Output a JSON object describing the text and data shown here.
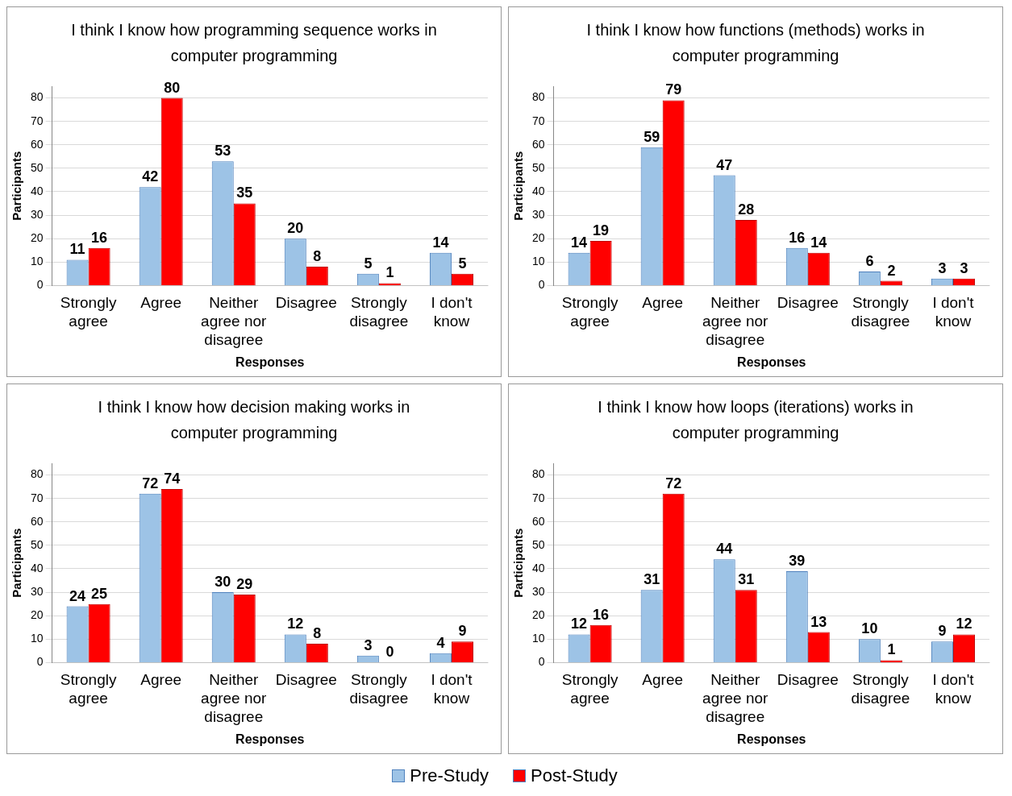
{
  "chart_data": [
    {
      "type": "bar",
      "title": "I think I know how programming sequence works in computer programming",
      "xlabel": "Responses",
      "ylabel": "Participants",
      "categories": [
        "Strongly agree",
        "Agree",
        "Neither agree nor disagree",
        "Disagree",
        "Strongly disagree",
        "I don't know"
      ],
      "series": [
        {
          "name": "Pre-Study",
          "color": "#9dc3e6",
          "values": [
            11,
            42,
            53,
            20,
            5,
            14
          ]
        },
        {
          "name": "Post-Study",
          "color": "#ff0000",
          "values": [
            16,
            80,
            35,
            8,
            1,
            5
          ]
        }
      ],
      "ylim": [
        0,
        85
      ],
      "yticks": [
        0,
        10,
        20,
        30,
        40,
        50,
        60,
        70,
        80
      ],
      "grid": "y",
      "data_labels": true,
      "legend": "bottom"
    },
    {
      "type": "bar",
      "title": "I think I know how functions (methods) works in computer programming",
      "xlabel": "Responses",
      "ylabel": "Participants",
      "categories": [
        "Strongly agree",
        "Agree",
        "Neither agree nor disagree",
        "Disagree",
        "Strongly disagree",
        "I don't know"
      ],
      "series": [
        {
          "name": "Pre-Study",
          "color": "#9dc3e6",
          "values": [
            14,
            59,
            47,
            16,
            6,
            3
          ]
        },
        {
          "name": "Post-Study",
          "color": "#ff0000",
          "values": [
            19,
            79,
            28,
            14,
            2,
            3
          ]
        }
      ],
      "ylim": [
        0,
        85
      ],
      "yticks": [
        0,
        10,
        20,
        30,
        40,
        50,
        60,
        70,
        80
      ],
      "grid": "y",
      "data_labels": true,
      "legend": "bottom"
    },
    {
      "type": "bar",
      "title": "I think I know how decision making works in computer programming",
      "xlabel": "Responses",
      "ylabel": "Participants",
      "categories": [
        "Strongly agree",
        "Agree",
        "Neither agree nor disagree",
        "Disagree",
        "Strongly disagree",
        "I don't know"
      ],
      "series": [
        {
          "name": "Pre-Study",
          "color": "#9dc3e6",
          "values": [
            24,
            72,
            30,
            12,
            3,
            4
          ]
        },
        {
          "name": "Post-Study",
          "color": "#ff0000",
          "values": [
            25,
            74,
            29,
            8,
            0,
            9
          ]
        }
      ],
      "ylim": [
        0,
        85
      ],
      "yticks": [
        0,
        10,
        20,
        30,
        40,
        50,
        60,
        70,
        80
      ],
      "grid": "y",
      "data_labels": true,
      "legend": "bottom"
    },
    {
      "type": "bar",
      "title": "I think I know how loops (iterations) works in computer programming",
      "xlabel": "Responses",
      "ylabel": "Participants",
      "categories": [
        "Strongly agree",
        "Agree",
        "Neither agree nor disagree",
        "Disagree",
        "Strongly disagree",
        "I don't know"
      ],
      "series": [
        {
          "name": "Pre-Study",
          "color": "#9dc3e6",
          "values": [
            12,
            31,
            44,
            39,
            10,
            9
          ]
        },
        {
          "name": "Post-Study",
          "color": "#ff0000",
          "values": [
            16,
            72,
            31,
            13,
            1,
            12
          ]
        }
      ],
      "ylim": [
        0,
        85
      ],
      "yticks": [
        0,
        10,
        20,
        30,
        40,
        50,
        60,
        70,
        80
      ],
      "grid": "y",
      "data_labels": true,
      "legend": "bottom"
    }
  ]
}
